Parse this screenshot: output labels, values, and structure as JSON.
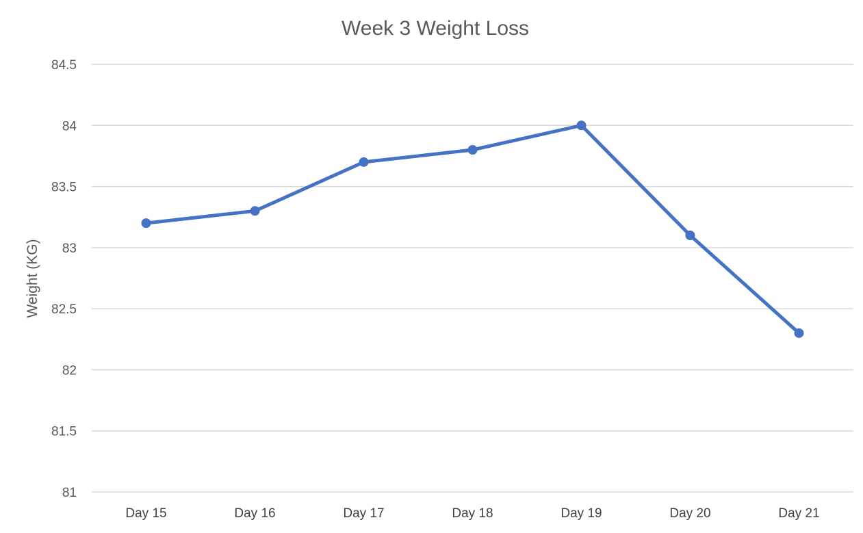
{
  "chart_data": {
    "type": "line",
    "title": "Week 3 Weight Loss",
    "xlabel": "",
    "ylabel": "Weight (KG)",
    "categories": [
      "Day 15",
      "Day 16",
      "Day 17",
      "Day 18",
      "Day 19",
      "Day 20",
      "Day 21"
    ],
    "series": [
      {
        "values": [
          83.2,
          83.3,
          83.7,
          83.8,
          84.0,
          83.1,
          82.3
        ],
        "color": "#4472c4",
        "marker": "circle"
      }
    ],
    "ylim": [
      81,
      84.5
    ],
    "yticks": [
      "81",
      "81.5",
      "82",
      "82.5",
      "83",
      "83.5",
      "84",
      "84.5"
    ],
    "ytick_values": [
      81,
      81.5,
      82,
      82.5,
      83,
      83.5,
      84,
      84.5
    ],
    "grid": true,
    "legend": "none"
  }
}
